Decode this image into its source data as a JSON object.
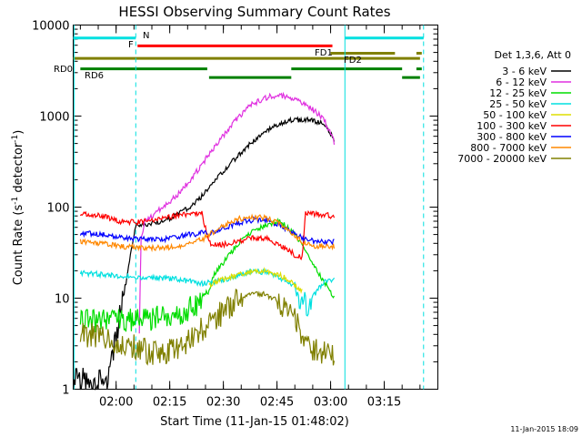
{
  "chart_data": {
    "type": "line",
    "title": "HESSI Observing Summary Count Rates",
    "xlabel": "Start Time (11-Jan-15 01:48:02)",
    "ylabel_main": "Count Rate (s",
    "ylabel_sup1": "-1",
    "ylabel_mid": " detector",
    "ylabel_sup2": "-1",
    "ylabel_end": ")",
    "xlim_minutes_after_0148": [
      0,
      102
    ],
    "ylim": [
      1,
      10000
    ],
    "y_scale": "log",
    "x_ticks": [
      {
        "label": "02:00",
        "t": 12
      },
      {
        "label": "02:15",
        "t": 27
      },
      {
        "label": "02:30",
        "t": 42
      },
      {
        "label": "02:45",
        "t": 57
      },
      {
        "label": "03:00",
        "t": 72
      },
      {
        "label": "03:15",
        "t": 87
      }
    ],
    "y_ticks": [
      {
        "label": "1",
        "v": 1
      },
      {
        "label": "10",
        "v": 10
      },
      {
        "label": "100",
        "v": 100
      },
      {
        "label": "1000",
        "v": 1000
      },
      {
        "label": "10000",
        "v": 10000
      }
    ],
    "legend_header": "Det 1,3,6, Att 0",
    "legend_position": "right",
    "timestamp": "11-Jan-2015 18:09",
    "series": [
      {
        "name": "3 - 6 keV",
        "color": "#000000",
        "points": [
          [
            0,
            1.3
          ],
          [
            5,
            1.2
          ],
          [
            10,
            1.3
          ],
          [
            17.5,
            62
          ],
          [
            20,
            64
          ],
          [
            25,
            70
          ],
          [
            30,
            86
          ],
          [
            35,
            118
          ],
          [
            40,
            200
          ],
          [
            45,
            330
          ],
          [
            50,
            520
          ],
          [
            55,
            720
          ],
          [
            60,
            900
          ],
          [
            65,
            920
          ],
          [
            70,
            830
          ],
          [
            73,
            560
          ]
        ]
      },
      {
        "name": "6 - 12 keV",
        "color": "#e030e0",
        "points": [
          [
            18.5,
            5
          ],
          [
            19,
            45
          ],
          [
            20,
            68
          ],
          [
            22,
            80
          ],
          [
            25,
            100
          ],
          [
            30,
            145
          ],
          [
            35,
            260
          ],
          [
            40,
            480
          ],
          [
            45,
            870
          ],
          [
            50,
            1350
          ],
          [
            55,
            1650
          ],
          [
            58,
            1700
          ],
          [
            60,
            1600
          ],
          [
            65,
            1350
          ],
          [
            70,
            950
          ],
          [
            73,
            520
          ]
        ]
      },
      {
        "name": "12 - 25 keV",
        "color": "#00dd00",
        "points": [
          [
            2,
            5.6
          ],
          [
            10,
            5.6
          ],
          [
            20,
            5.8
          ],
          [
            30,
            7
          ],
          [
            37,
            9
          ],
          [
            39,
            17
          ],
          [
            45,
            35
          ],
          [
            50,
            55
          ],
          [
            55,
            65
          ],
          [
            58,
            70
          ],
          [
            62,
            50
          ],
          [
            66,
            28
          ],
          [
            69,
            18
          ],
          [
            73,
            10
          ]
        ]
      },
      {
        "name": "25 - 50 keV",
        "color": "#00e0e0",
        "points": [
          [
            2,
            19
          ],
          [
            10,
            18
          ],
          [
            20,
            17
          ],
          [
            30,
            16
          ],
          [
            36,
            14.5
          ],
          [
            39,
            15
          ],
          [
            45,
            17
          ],
          [
            50,
            20
          ],
          [
            55,
            19
          ],
          [
            60,
            15
          ],
          [
            62,
            14
          ],
          [
            63,
            8
          ],
          [
            66,
            9
          ],
          [
            70,
            15
          ],
          [
            73,
            16
          ]
        ]
      },
      {
        "name": "50 - 100 keV",
        "color": "#dddd00",
        "points": [
          [
            38,
            14
          ],
          [
            42,
            16
          ],
          [
            46,
            18
          ],
          [
            50,
            20
          ],
          [
            54,
            20
          ],
          [
            58,
            18
          ],
          [
            62,
            14
          ],
          [
            64,
            12
          ]
        ]
      },
      {
        "name": "100 - 300 keV",
        "color": "#ff0000",
        "points": [
          [
            2,
            85
          ],
          [
            8,
            80
          ],
          [
            13,
            70
          ],
          [
            18,
            68
          ],
          [
            22,
            72
          ],
          [
            26,
            77
          ],
          [
            30,
            82
          ],
          [
            36,
            87
          ],
          [
            38,
            40
          ],
          [
            42,
            39
          ],
          [
            46,
            42
          ],
          [
            50,
            46
          ],
          [
            54,
            45
          ],
          [
            58,
            38
          ],
          [
            62,
            30
          ],
          [
            64,
            28
          ],
          [
            65,
            85
          ],
          [
            70,
            82
          ],
          [
            73,
            80
          ]
        ]
      },
      {
        "name": "300 - 800 keV",
        "color": "#0000ff",
        "points": [
          [
            2,
            52
          ],
          [
            8,
            50
          ],
          [
            14,
            46
          ],
          [
            20,
            44
          ],
          [
            26,
            45
          ],
          [
            30,
            48
          ],
          [
            36,
            52
          ],
          [
            38,
            51
          ],
          [
            42,
            58
          ],
          [
            46,
            66
          ],
          [
            50,
            72
          ],
          [
            54,
            72
          ],
          [
            58,
            62
          ],
          [
            62,
            50
          ],
          [
            66,
            43
          ],
          [
            70,
            42
          ],
          [
            73,
            42
          ]
        ]
      },
      {
        "name": "800 - 7000 keV",
        "color": "#ff8800",
        "points": [
          [
            2,
            42
          ],
          [
            8,
            40
          ],
          [
            14,
            37
          ],
          [
            20,
            35
          ],
          [
            26,
            36
          ],
          [
            30,
            38
          ],
          [
            36,
            44
          ],
          [
            38,
            50
          ],
          [
            42,
            62
          ],
          [
            46,
            74
          ],
          [
            50,
            78
          ],
          [
            54,
            76
          ],
          [
            58,
            65
          ],
          [
            62,
            48
          ],
          [
            66,
            38
          ],
          [
            70,
            37
          ],
          [
            73,
            37
          ]
        ]
      },
      {
        "name": "7000 - 20000 keV",
        "color": "#808000",
        "points": [
          [
            2,
            4
          ],
          [
            8,
            3.8
          ],
          [
            14,
            3.2
          ],
          [
            18,
            2.8
          ],
          [
            22,
            2.5
          ],
          [
            26,
            2.6
          ],
          [
            30,
            3
          ],
          [
            36,
            4.5
          ],
          [
            38,
            5.5
          ],
          [
            42,
            7
          ],
          [
            46,
            9.5
          ],
          [
            50,
            11
          ],
          [
            54,
            11
          ],
          [
            58,
            9
          ],
          [
            62,
            6
          ],
          [
            64,
            4
          ],
          [
            66,
            2.8
          ],
          [
            70,
            2.6
          ],
          [
            73,
            2.5
          ]
        ]
      }
    ],
    "annotations": [
      {
        "label": "N",
        "color": "#00e0e0"
      },
      {
        "label": "F",
        "color": "#ff0000"
      },
      {
        "label": "FD1",
        "color": "#808000"
      },
      {
        "label": "FD2",
        "color": "#808000"
      },
      {
        "label": "RD0",
        "color": "#008000"
      },
      {
        "label": "RD6",
        "color": "#008000"
      }
    ],
    "flag_bars": [
      {
        "color": "#00e0e0",
        "v": 7200,
        "ranges": [
          [
            0,
            17.5
          ],
          [
            76,
            98
          ]
        ]
      },
      {
        "color": "#ff0000",
        "v": 5900,
        "ranges": [
          [
            18,
            72.5
          ]
        ]
      },
      {
        "color": "#808000",
        "v": 4300,
        "ranges": [
          [
            0,
            97
          ]
        ]
      },
      {
        "color": "#808000",
        "v": 4900,
        "ranges": [
          [
            72,
            90
          ],
          [
            96,
            97.5
          ]
        ]
      },
      {
        "color": "#008000",
        "v": 3300,
        "ranges": [
          [
            2,
            37.5
          ],
          [
            61,
            92
          ],
          [
            96,
            97.5
          ]
        ]
      },
      {
        "color": "#008000",
        "v": 2650,
        "ranges": [
          [
            38,
            61
          ],
          [
            92,
            97
          ]
        ]
      }
    ],
    "vertical_lines": [
      {
        "t": 0.3,
        "color": "#00e0e0",
        "style": "solid"
      },
      {
        "t": 17.5,
        "color": "#00e0e0",
        "style": "dashed"
      },
      {
        "t": 76,
        "color": "#00e0e0",
        "style": "solid"
      },
      {
        "t": 98,
        "color": "#00e0e0",
        "style": "dashed"
      }
    ]
  }
}
